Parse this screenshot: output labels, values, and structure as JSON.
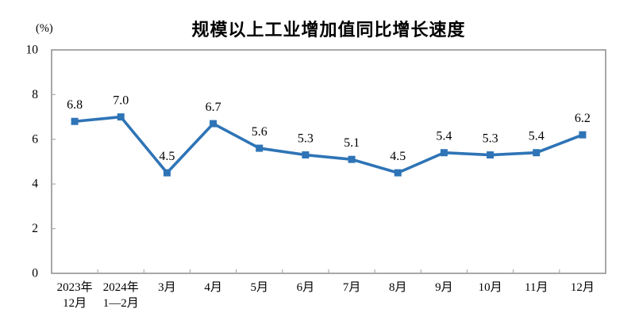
{
  "page": {
    "background": "#ffffff"
  },
  "chart_data": {
    "type": "line",
    "title": "规模以上工业增加值同比增长速度",
    "unit_label": "(%)",
    "categories": [
      "2023年\n12月",
      "2024年\n1—2月",
      "3月",
      "4月",
      "5月",
      "6月",
      "7月",
      "8月",
      "9月",
      "10月",
      "11月",
      "12月"
    ],
    "values": [
      6.8,
      7.0,
      4.5,
      6.7,
      5.6,
      5.3,
      5.1,
      4.5,
      5.4,
      5.3,
      5.4,
      6.2
    ],
    "data_labels": [
      "6.8",
      "7.0",
      "4.5",
      "6.7",
      "5.6",
      "5.3",
      "5.1",
      "4.5",
      "5.4",
      "5.3",
      "5.4",
      "6.2"
    ],
    "xlabel": "",
    "ylabel": "(%)",
    "ylim": [
      0,
      10
    ],
    "yticks": [
      0,
      2,
      4,
      6,
      8,
      10
    ],
    "grid": false,
    "legend_position": "none",
    "marker": "square",
    "colors": {
      "line": "#2E74B6",
      "marker": "#2E74B6",
      "axis_border": "#929292",
      "tick": "#ACACAC",
      "text": "#000000"
    }
  }
}
